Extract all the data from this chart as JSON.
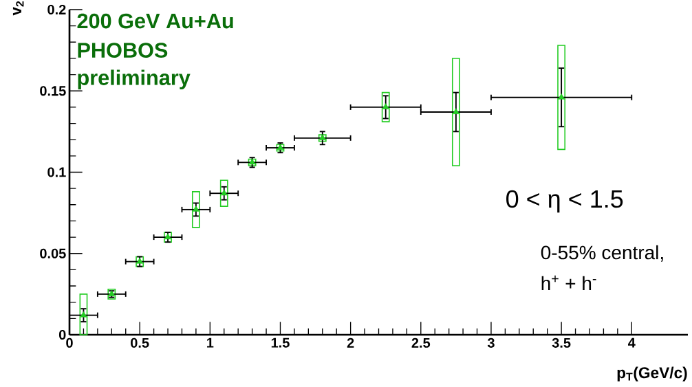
{
  "chart_data": {
    "type": "scatter",
    "xlabel": "p$_{T}$(GeV/c)",
    "ylabel": "v$_{2}$",
    "x": [
      0.1,
      0.3,
      0.5,
      0.7,
      0.9,
      1.1,
      1.3,
      1.5,
      1.8,
      2.25,
      2.75,
      3.5
    ],
    "series": [
      {
        "type": "bar",
        "color": "#22cc22",
        "base": [
          0.0,
          0.022,
          0.042,
          0.057,
          0.066,
          0.079,
          0.104,
          0.113,
          0.119,
          0.131,
          0.104,
          0.114
        ],
        "values": [
          0.025,
          0.006,
          0.006,
          0.006,
          0.022,
          0.016,
          0.004,
          0.004,
          0.004,
          0.018,
          0.066,
          0.064
        ]
      },
      {
        "color": "#22cc22",
        "values": [
          0.012,
          0.025,
          0.045,
          0.06,
          0.077,
          0.087,
          0.106,
          0.115,
          0.121,
          0.14,
          0.137,
          0.146
        ],
        "errors": [
          0.004,
          0.002,
          0.003,
          0.003,
          0.004,
          0.004,
          0.003,
          0.003,
          0.004,
          0.007,
          0.012,
          0.018
        ],
        "xerrors": [
          0.1,
          0.1,
          0.1,
          0.1,
          0.1,
          0.1,
          0.1,
          0.1,
          0.2,
          0.25,
          0.25,
          0.5
        ]
      }
    ],
    "xlim": [
      0,
      4.4
    ],
    "ylim": [
      0,
      0.2
    ],
    "xticks": [
      0,
      0.5,
      1,
      1.5,
      2,
      2.5,
      3,
      3.5,
      4
    ],
    "yticks": [
      0,
      0.05,
      0.1,
      0.15,
      0.2
    ],
    "marker": "triangle",
    "grid": false,
    "legend": false,
    "annotations": [
      "200 GeV Au+Au",
      "PHOBOS",
      "preliminary",
      "0 < η < 1.5",
      "0-55% central,",
      "h$^{+}$ + h$^{-}$"
    ]
  }
}
